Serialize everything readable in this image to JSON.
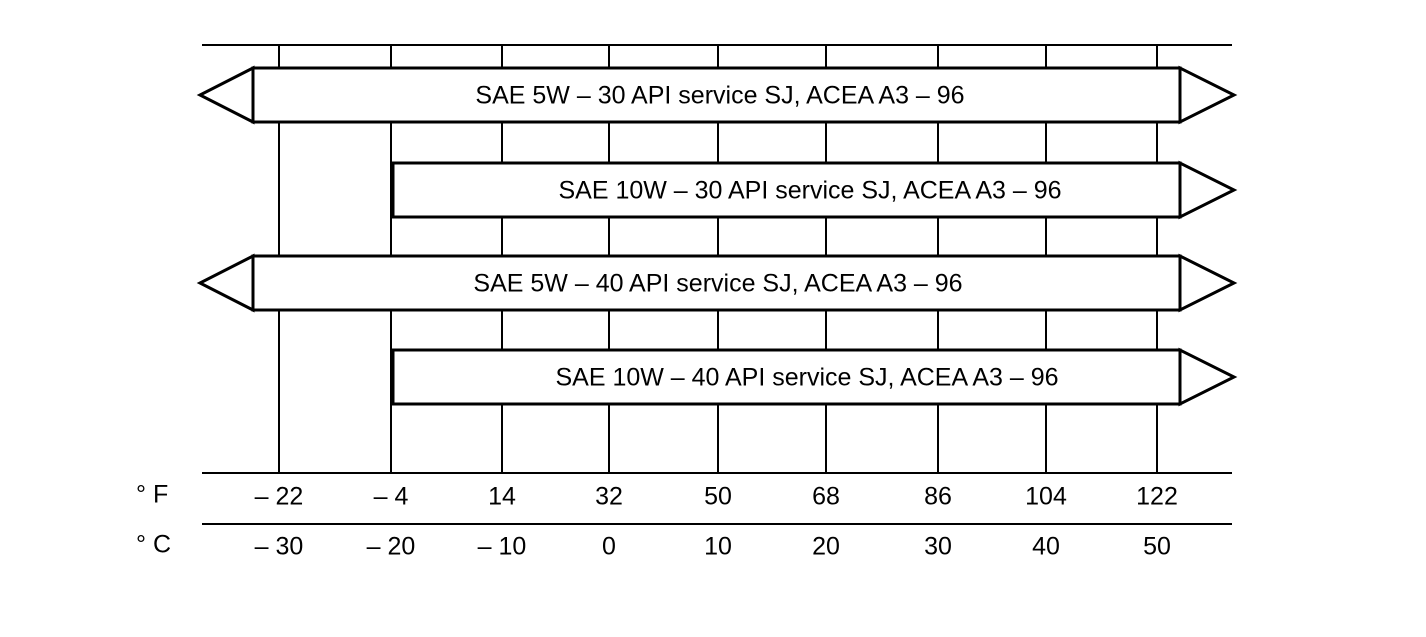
{
  "bars": [
    {
      "label": "SAE 5W – 30 API service SJ, ACEA A3 – 96"
    },
    {
      "label": "SAE 10W – 30 API service SJ, ACEA A3 – 96"
    },
    {
      "label": "SAE 5W – 40 API service SJ, ACEA A3 – 96"
    },
    {
      "label": "SAE 10W – 40 API service SJ, ACEA A3 – 96"
    }
  ],
  "scale": {
    "fahrenheit": {
      "unit": "° F",
      "ticks": [
        "– 22",
        "– 4",
        "14",
        "32",
        "50",
        "68",
        "86",
        "104",
        "122"
      ]
    },
    "celsius": {
      "unit": "° C",
      "ticks": [
        "– 30",
        "– 20",
        "– 10",
        "0",
        "10",
        "20",
        "30",
        "40",
        "50"
      ]
    }
  }
}
